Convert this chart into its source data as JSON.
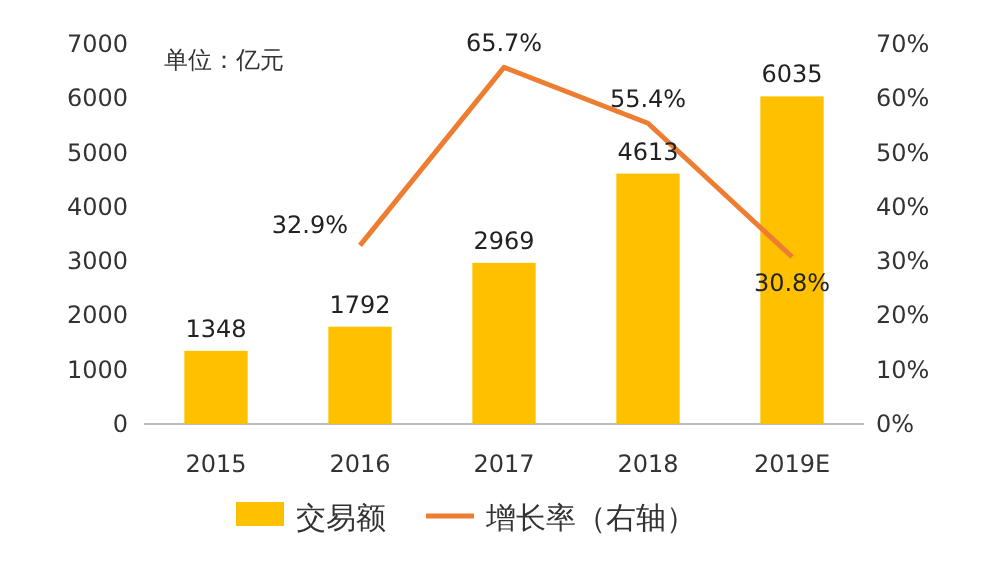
{
  "chart_data": {
    "type": "bar",
    "categories": [
      "2015",
      "2016",
      "2017",
      "2018",
      "2019E"
    ],
    "series": [
      {
        "name": "交易额",
        "color": "#ffc000",
        "values": [
          1348,
          1792,
          2969,
          4613,
          6035
        ],
        "value_labels": [
          "1348",
          "1792",
          "2969",
          "4613",
          "6035"
        ]
      },
      {
        "name": "增长率（右轴）",
        "type": "line",
        "axis": "y2",
        "color": "#ed7d31",
        "values": [
          null,
          32.9,
          65.7,
          55.4,
          30.8
        ],
        "value_labels": [
          null,
          "32.9%",
          "65.7%",
          "55.4%",
          "30.8%"
        ]
      }
    ],
    "ylim": [
      0,
      7000
    ],
    "yticks": [
      0,
      1000,
      2000,
      3000,
      4000,
      5000,
      6000,
      7000
    ],
    "y2lim": [
      0,
      70
    ],
    "y2ticks": [
      {
        "value": 0,
        "label": "0%"
      },
      {
        "value": 10,
        "label": "10%"
      },
      {
        "value": 20,
        "label": "20%"
      },
      {
        "value": 30,
        "label": "30%"
      },
      {
        "value": 40,
        "label": "40%"
      },
      {
        "value": 50,
        "label": "50%"
      },
      {
        "value": 60,
        "label": "60%"
      },
      {
        "value": 70,
        "label": "70%"
      }
    ],
    "annotations": [
      "单位：亿元"
    ],
    "legend": "bottom",
    "grid": false
  }
}
